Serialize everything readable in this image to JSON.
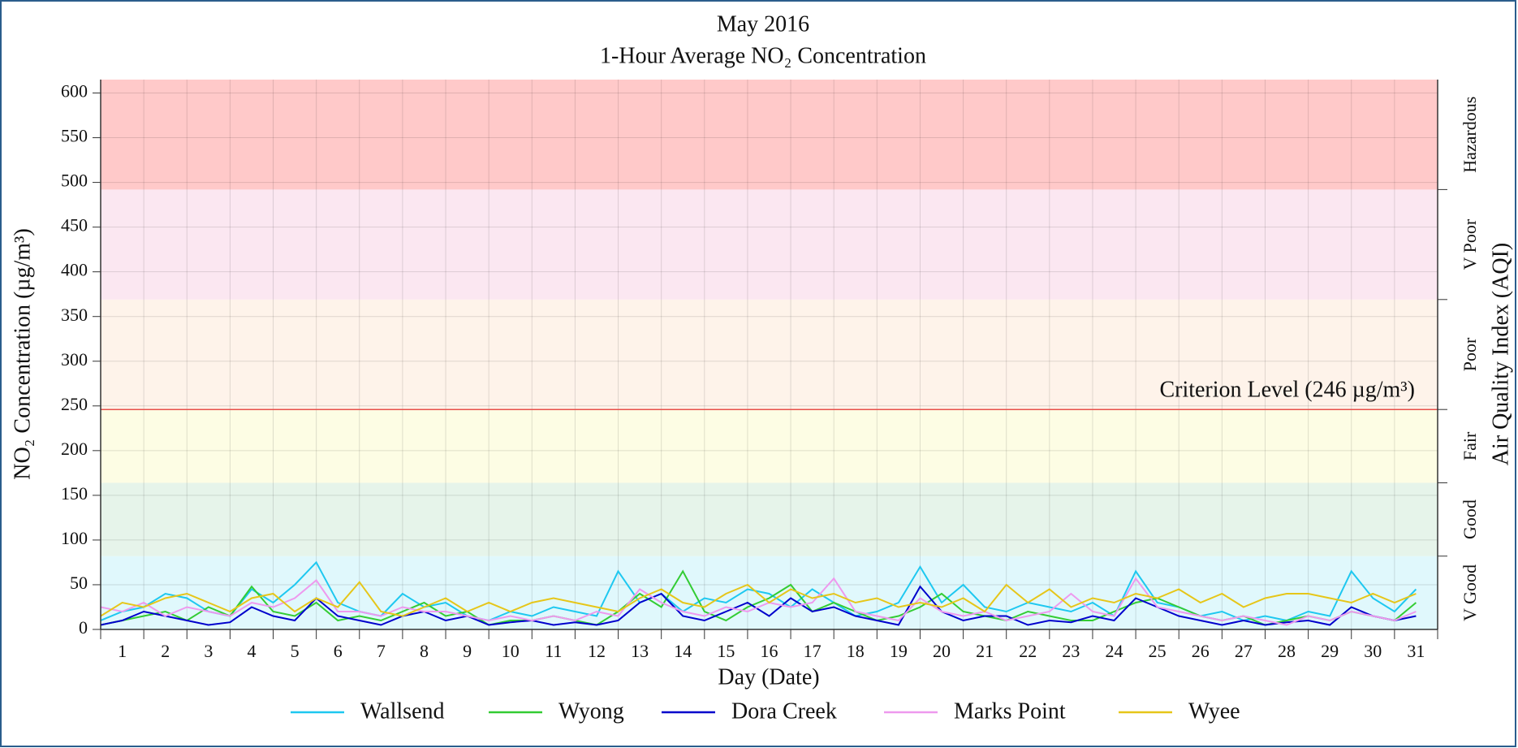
{
  "chart_data": {
    "type": "line",
    "title": "May 2016",
    "subtitle": "1-Hour Average NO₂ Concentration",
    "x_label": "Day (Date)",
    "y_label": "NO₂ Concentration (µg/m³)",
    "y2_label": "Air Quality Index (AQI)",
    "xlim": [
      1,
      32
    ],
    "xgrid": [
      1,
      2,
      3,
      4,
      5,
      6,
      7,
      8,
      9,
      10,
      11,
      12,
      13,
      14,
      15,
      16,
      17,
      18,
      19,
      20,
      21,
      22,
      23,
      24,
      25,
      26,
      27,
      28,
      29,
      30,
      31,
      32
    ],
    "xticks": [
      {
        "value": 1.5,
        "label": "1"
      },
      {
        "value": 2.5,
        "label": "2"
      },
      {
        "value": 3.5,
        "label": "3"
      },
      {
        "value": 4.5,
        "label": "4"
      },
      {
        "value": 5.5,
        "label": "5"
      },
      {
        "value": 6.5,
        "label": "6"
      },
      {
        "value": 7.5,
        "label": "7"
      },
      {
        "value": 8.5,
        "label": "8"
      },
      {
        "value": 9.5,
        "label": "9"
      },
      {
        "value": 10.5,
        "label": "10"
      },
      {
        "value": 11.5,
        "label": "11"
      },
      {
        "value": 12.5,
        "label": "12"
      },
      {
        "value": 13.5,
        "label": "13"
      },
      {
        "value": 14.5,
        "label": "14"
      },
      {
        "value": 15.5,
        "label": "15"
      },
      {
        "value": 16.5,
        "label": "16"
      },
      {
        "value": 17.5,
        "label": "17"
      },
      {
        "value": 18.5,
        "label": "18"
      },
      {
        "value": 19.5,
        "label": "19"
      },
      {
        "value": 20.5,
        "label": "20"
      },
      {
        "value": 21.5,
        "label": "21"
      },
      {
        "value": 22.5,
        "label": "22"
      },
      {
        "value": 23.5,
        "label": "23"
      },
      {
        "value": 24.5,
        "label": "24"
      },
      {
        "value": 25.5,
        "label": "25"
      },
      {
        "value": 26.5,
        "label": "26"
      },
      {
        "value": 27.5,
        "label": "27"
      },
      {
        "value": 28.5,
        "label": "28"
      },
      {
        "value": 29.5,
        "label": "29"
      },
      {
        "value": 30.5,
        "label": "30"
      },
      {
        "value": 31.5,
        "label": "31"
      }
    ],
    "ylim": [
      0,
      615
    ],
    "yticks": [
      0,
      50,
      100,
      150,
      200,
      250,
      300,
      350,
      400,
      450,
      500,
      550,
      600
    ],
    "grid": true,
    "bands": [
      {
        "label": "V Good",
        "from": 0,
        "to": 82,
        "color": "#e0f8fc"
      },
      {
        "label": "Good",
        "from": 82,
        "to": 164,
        "color": "#e6f4ea"
      },
      {
        "label": "Fair",
        "from": 164,
        "to": 246,
        "color": "#fdfde4"
      },
      {
        "label": "Poor",
        "from": 246,
        "to": 369,
        "color": "#fef3ea"
      },
      {
        "label": "V Poor",
        "from": 369,
        "to": 492,
        "color": "#fbe7f1"
      },
      {
        "label": "Hazardous",
        "from": 492,
        "to": 615,
        "color": "#ffc9c9"
      }
    ],
    "criterion": {
      "value": 246,
      "label": "Criterion Level (246 µg/m³)",
      "color": "#e8504a"
    },
    "x": [
      1,
      1.5,
      2,
      2.5,
      3,
      3.5,
      4,
      4.5,
      5,
      5.5,
      6,
      6.5,
      7,
      7.5,
      8,
      8.5,
      9,
      9.5,
      10,
      10.5,
      11,
      11.5,
      12,
      12.5,
      13,
      13.5,
      14,
      14.5,
      15,
      15.5,
      16,
      16.5,
      17,
      17.5,
      18,
      18.5,
      19,
      19.5,
      20,
      20.5,
      21,
      21.5,
      22,
      22.5,
      23,
      23.5,
      24,
      24.5,
      25,
      25.5,
      26,
      26.5,
      27,
      27.5,
      28,
      28.5,
      29,
      29.5,
      30,
      30.5,
      31,
      31.5
    ],
    "series": [
      {
        "name": "Wallsend",
        "color": "#1ec8f0",
        "values": [
          10,
          20,
          25,
          40,
          35,
          20,
          15,
          45,
          30,
          50,
          75,
          30,
          20,
          15,
          40,
          25,
          30,
          15,
          10,
          20,
          15,
          25,
          20,
          15,
          65,
          30,
          40,
          20,
          35,
          30,
          45,
          40,
          25,
          45,
          30,
          15,
          20,
          30,
          70,
          30,
          50,
          25,
          20,
          30,
          25,
          20,
          30,
          15,
          65,
          30,
          25,
          15,
          20,
          10,
          15,
          10,
          20,
          15,
          65,
          35,
          20,
          45
        ]
      },
      {
        "name": "Wyong",
        "color": "#33cc33",
        "values": [
          5,
          10,
          15,
          20,
          10,
          25,
          15,
          48,
          20,
          15,
          30,
          10,
          15,
          10,
          20,
          30,
          15,
          20,
          5,
          10,
          10,
          15,
          10,
          5,
          20,
          40,
          25,
          65,
          20,
          10,
          25,
          35,
          50,
          20,
          30,
          20,
          10,
          15,
          25,
          40,
          20,
          15,
          10,
          20,
          15,
          10,
          10,
          20,
          30,
          35,
          25,
          15,
          10,
          15,
          5,
          10,
          15,
          10,
          20,
          15,
          10,
          30
        ]
      },
      {
        "name": "Dora Creek",
        "color": "#0000cc",
        "values": [
          5,
          10,
          20,
          15,
          10,
          5,
          8,
          25,
          15,
          10,
          35,
          15,
          10,
          5,
          15,
          20,
          10,
          15,
          5,
          8,
          10,
          5,
          8,
          5,
          10,
          30,
          40,
          15,
          10,
          20,
          30,
          15,
          35,
          20,
          25,
          15,
          10,
          5,
          48,
          20,
          10,
          15,
          15,
          5,
          10,
          8,
          15,
          10,
          35,
          25,
          15,
          10,
          5,
          10,
          5,
          8,
          10,
          5,
          25,
          15,
          10,
          15
        ]
      },
      {
        "name": "Marks Point",
        "color": "#ee99ee",
        "values": [
          25,
          20,
          30,
          15,
          25,
          20,
          15,
          30,
          25,
          35,
          55,
          20,
          20,
          15,
          25,
          20,
          20,
          15,
          10,
          15,
          10,
          15,
          10,
          20,
          15,
          45,
          30,
          20,
          15,
          25,
          20,
          30,
          25,
          30,
          57,
          20,
          15,
          10,
          35,
          20,
          15,
          20,
          10,
          15,
          20,
          40,
          20,
          15,
          57,
          25,
          20,
          15,
          10,
          15,
          10,
          5,
          15,
          10,
          20,
          15,
          10,
          20
        ]
      },
      {
        "name": "Wyee",
        "color": "#e6c619",
        "values": [
          15,
          30,
          25,
          35,
          40,
          30,
          20,
          35,
          40,
          20,
          35,
          25,
          53,
          20,
          15,
          25,
          35,
          20,
          30,
          20,
          30,
          35,
          30,
          25,
          20,
          35,
          45,
          30,
          25,
          40,
          50,
          30,
          45,
          35,
          40,
          30,
          35,
          25,
          30,
          25,
          35,
          20,
          50,
          30,
          45,
          25,
          35,
          30,
          40,
          35,
          45,
          30,
          40,
          25,
          35,
          40,
          40,
          35,
          30,
          40,
          30,
          40
        ]
      }
    ]
  }
}
